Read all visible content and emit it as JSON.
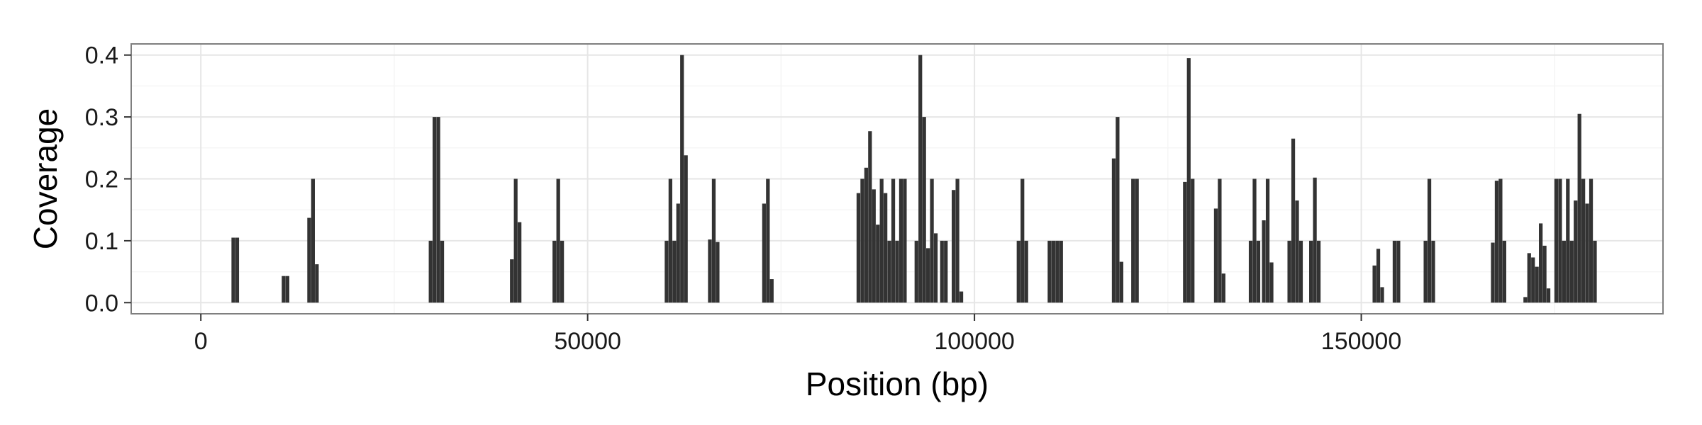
{
  "chart_data": {
    "type": "bar",
    "title": "",
    "xlabel": "Position (bp)",
    "ylabel": "Coverage",
    "xlim": [
      -9000,
      189000
    ],
    "ylim": [
      -0.018,
      0.418
    ],
    "x_ticks": [
      0,
      50000,
      100000,
      150000
    ],
    "x_tick_labels": [
      "0",
      "50000",
      "100000",
      "150000"
    ],
    "y_ticks": [
      0.0,
      0.1,
      0.2,
      0.3,
      0.4
    ],
    "y_tick_labels": [
      "0.0",
      "0.1",
      "0.2",
      "0.3",
      "0.4"
    ],
    "grid": true,
    "legend": "none",
    "bar_width": 480,
    "bar_color": "#333333",
    "bars": [
      {
        "x": 4200,
        "y": 0.105
      },
      {
        "x": 4700,
        "y": 0.105
      },
      {
        "x": 10700,
        "y": 0.043
      },
      {
        "x": 11200,
        "y": 0.043
      },
      {
        "x": 14000,
        "y": 0.137
      },
      {
        "x": 14500,
        "y": 0.2
      },
      {
        "x": 15000,
        "y": 0.062
      },
      {
        "x": 29700,
        "y": 0.1
      },
      {
        "x": 30200,
        "y": 0.3
      },
      {
        "x": 30700,
        "y": 0.3
      },
      {
        "x": 31200,
        "y": 0.1
      },
      {
        "x": 40200,
        "y": 0.07
      },
      {
        "x": 40700,
        "y": 0.2
      },
      {
        "x": 41200,
        "y": 0.13
      },
      {
        "x": 45700,
        "y": 0.1
      },
      {
        "x": 46200,
        "y": 0.2
      },
      {
        "x": 46700,
        "y": 0.1
      },
      {
        "x": 60200,
        "y": 0.1
      },
      {
        "x": 60700,
        "y": 0.2
      },
      {
        "x": 61200,
        "y": 0.1
      },
      {
        "x": 61700,
        "y": 0.16
      },
      {
        "x": 62200,
        "y": 0.4
      },
      {
        "x": 62700,
        "y": 0.238
      },
      {
        "x": 65800,
        "y": 0.102
      },
      {
        "x": 66300,
        "y": 0.2
      },
      {
        "x": 66800,
        "y": 0.098
      },
      {
        "x": 72800,
        "y": 0.16
      },
      {
        "x": 73300,
        "y": 0.2
      },
      {
        "x": 73800,
        "y": 0.038
      },
      {
        "x": 85000,
        "y": 0.177
      },
      {
        "x": 85500,
        "y": 0.2
      },
      {
        "x": 86000,
        "y": 0.218
      },
      {
        "x": 86500,
        "y": 0.277
      },
      {
        "x": 87000,
        "y": 0.183
      },
      {
        "x": 87500,
        "y": 0.126
      },
      {
        "x": 88000,
        "y": 0.2
      },
      {
        "x": 88500,
        "y": 0.177
      },
      {
        "x": 89000,
        "y": 0.1
      },
      {
        "x": 89500,
        "y": 0.2
      },
      {
        "x": 90000,
        "y": 0.1
      },
      {
        "x": 90500,
        "y": 0.2
      },
      {
        "x": 91000,
        "y": 0.2
      },
      {
        "x": 92500,
        "y": 0.1
      },
      {
        "x": 93000,
        "y": 0.4
      },
      {
        "x": 93500,
        "y": 0.3
      },
      {
        "x": 94000,
        "y": 0.088
      },
      {
        "x": 94500,
        "y": 0.2
      },
      {
        "x": 95000,
        "y": 0.112
      },
      {
        "x": 95800,
        "y": 0.1
      },
      {
        "x": 96300,
        "y": 0.1
      },
      {
        "x": 97300,
        "y": 0.182
      },
      {
        "x": 97800,
        "y": 0.2
      },
      {
        "x": 98300,
        "y": 0.018
      },
      {
        "x": 105700,
        "y": 0.1
      },
      {
        "x": 106200,
        "y": 0.2
      },
      {
        "x": 106700,
        "y": 0.1
      },
      {
        "x": 109700,
        "y": 0.1
      },
      {
        "x": 110200,
        "y": 0.1
      },
      {
        "x": 110700,
        "y": 0.1
      },
      {
        "x": 111200,
        "y": 0.1
      },
      {
        "x": 118000,
        "y": 0.233
      },
      {
        "x": 118500,
        "y": 0.3
      },
      {
        "x": 119000,
        "y": 0.066
      },
      {
        "x": 120500,
        "y": 0.2
      },
      {
        "x": 121000,
        "y": 0.2
      },
      {
        "x": 127200,
        "y": 0.195
      },
      {
        "x": 127700,
        "y": 0.395
      },
      {
        "x": 128200,
        "y": 0.2
      },
      {
        "x": 131200,
        "y": 0.152
      },
      {
        "x": 131700,
        "y": 0.2
      },
      {
        "x": 132200,
        "y": 0.047
      },
      {
        "x": 135700,
        "y": 0.1
      },
      {
        "x": 136200,
        "y": 0.2
      },
      {
        "x": 136700,
        "y": 0.1
      },
      {
        "x": 137400,
        "y": 0.133
      },
      {
        "x": 137900,
        "y": 0.2
      },
      {
        "x": 138400,
        "y": 0.065
      },
      {
        "x": 140700,
        "y": 0.1
      },
      {
        "x": 141200,
        "y": 0.265
      },
      {
        "x": 141700,
        "y": 0.165
      },
      {
        "x": 142200,
        "y": 0.1
      },
      {
        "x": 143500,
        "y": 0.1
      },
      {
        "x": 144000,
        "y": 0.202
      },
      {
        "x": 144500,
        "y": 0.1
      },
      {
        "x": 151700,
        "y": 0.06
      },
      {
        "x": 152200,
        "y": 0.087
      },
      {
        "x": 152700,
        "y": 0.025
      },
      {
        "x": 154300,
        "y": 0.1
      },
      {
        "x": 154800,
        "y": 0.1
      },
      {
        "x": 158300,
        "y": 0.1
      },
      {
        "x": 158800,
        "y": 0.2
      },
      {
        "x": 159300,
        "y": 0.1
      },
      {
        "x": 167000,
        "y": 0.097
      },
      {
        "x": 167500,
        "y": 0.197
      },
      {
        "x": 168000,
        "y": 0.2
      },
      {
        "x": 168500,
        "y": 0.1
      },
      {
        "x": 171200,
        "y": 0.009
      },
      {
        "x": 171700,
        "y": 0.08
      },
      {
        "x": 172200,
        "y": 0.073
      },
      {
        "x": 172700,
        "y": 0.058
      },
      {
        "x": 173200,
        "y": 0.128
      },
      {
        "x": 173700,
        "y": 0.092
      },
      {
        "x": 174200,
        "y": 0.023
      },
      {
        "x": 175200,
        "y": 0.2
      },
      {
        "x": 175700,
        "y": 0.2
      },
      {
        "x": 176200,
        "y": 0.1
      },
      {
        "x": 176700,
        "y": 0.2
      },
      {
        "x": 177200,
        "y": 0.1
      },
      {
        "x": 177700,
        "y": 0.165
      },
      {
        "x": 178200,
        "y": 0.305
      },
      {
        "x": 178700,
        "y": 0.2
      },
      {
        "x": 179200,
        "y": 0.16
      },
      {
        "x": 179700,
        "y": 0.2
      },
      {
        "x": 180200,
        "y": 0.1
      }
    ]
  },
  "colors": {
    "background": "#ffffff",
    "panel_border": "#7f7f7f",
    "grid_major": "#e6e6e6",
    "grid_minor": "#f5f5f5",
    "bar": "#333333",
    "tick_mark": "#333333"
  }
}
